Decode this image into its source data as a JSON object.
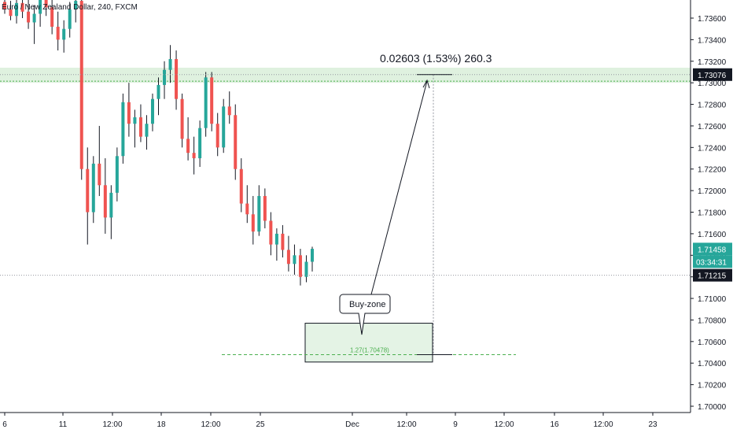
{
  "chart_data": {
    "type": "candlestick",
    "title": "Euro / New Zealand Dollar, 240, FXCM",
    "y_ticks": [
      "1.73600",
      "1.73400",
      "1.73200",
      "1.73000",
      "1.72800",
      "1.72600",
      "1.72400",
      "1.72200",
      "1.72000",
      "1.71800",
      "1.71600",
      "1.71400",
      "1.71200",
      "1.71000",
      "1.70800",
      "1.70600",
      "1.70400",
      "1.70200",
      "1.70000"
    ],
    "x_ticks": [
      "6",
      "11",
      "12:00",
      "18",
      "12:00",
      "25",
      "Dec",
      "12:00",
      "9",
      "12:00",
      "16",
      "12:00",
      "23"
    ],
    "ylim": [
      1.6994,
      1.7381
    ],
    "series": [
      {
        "name": "EURNZD",
        "ohlc_sample": [
          [
            1.7375,
            1.7381,
            1.7364,
            1.7368
          ],
          [
            1.7368,
            1.7376,
            1.7358,
            1.7362
          ],
          [
            1.7362,
            1.738,
            1.7355,
            1.7374
          ],
          [
            1.7374,
            1.7381,
            1.736,
            1.7366
          ],
          [
            1.7366,
            1.7377,
            1.735,
            1.7356
          ],
          [
            1.7356,
            1.7372,
            1.7336,
            1.7364
          ],
          [
            1.7364,
            1.7381,
            1.7352,
            1.7378
          ],
          [
            1.7378,
            1.7381,
            1.7362,
            1.737
          ],
          [
            1.737,
            1.7381,
            1.7345,
            1.7352
          ],
          [
            1.7352,
            1.7366,
            1.733,
            1.734
          ],
          [
            1.734,
            1.7358,
            1.7328,
            1.735
          ],
          [
            1.735,
            1.7375,
            1.7342,
            1.7368
          ],
          [
            1.7368,
            1.7381,
            1.7356,
            1.7376
          ],
          [
            1.7376,
            1.7381,
            1.721,
            1.722
          ],
          [
            1.722,
            1.724,
            1.715,
            1.718
          ],
          [
            1.718,
            1.7232,
            1.717,
            1.7225
          ],
          [
            1.7225,
            1.726,
            1.7195,
            1.7205
          ],
          [
            1.7205,
            1.723,
            1.716,
            1.7175
          ],
          [
            1.7175,
            1.7205,
            1.7155,
            1.7198
          ],
          [
            1.7198,
            1.724,
            1.719,
            1.7232
          ],
          [
            1.7232,
            1.729,
            1.7225,
            1.7282
          ],
          [
            1.7282,
            1.73,
            1.725,
            1.7262
          ],
          [
            1.7262,
            1.7275,
            1.724,
            1.7268
          ],
          [
            1.7268,
            1.728,
            1.7245,
            1.725
          ],
          [
            1.725,
            1.727,
            1.7238,
            1.7262
          ],
          [
            1.7262,
            1.729,
            1.7255,
            1.7285
          ],
          [
            1.7285,
            1.7305,
            1.727,
            1.7298
          ],
          [
            1.7298,
            1.732,
            1.7285,
            1.7312
          ],
          [
            1.7312,
            1.7335,
            1.73,
            1.7322
          ],
          [
            1.7322,
            1.733,
            1.7275,
            1.7285
          ],
          [
            1.7285,
            1.729,
            1.724,
            1.7248
          ],
          [
            1.7248,
            1.7268,
            1.7228,
            1.7235
          ],
          [
            1.7235,
            1.725,
            1.7215,
            1.723
          ],
          [
            1.723,
            1.7265,
            1.7222,
            1.7258
          ],
          [
            1.7258,
            1.731,
            1.725,
            1.7305
          ],
          [
            1.7305,
            1.731,
            1.7255,
            1.7262
          ],
          [
            1.7262,
            1.7272,
            1.7232,
            1.724
          ],
          [
            1.724,
            1.7285,
            1.7235,
            1.7278
          ],
          [
            1.7278,
            1.7292,
            1.7262,
            1.727
          ],
          [
            1.727,
            1.728,
            1.721,
            1.722
          ],
          [
            1.722,
            1.723,
            1.718,
            1.7188
          ],
          [
            1.7188,
            1.7205,
            1.717,
            1.7178
          ],
          [
            1.7178,
            1.7195,
            1.715,
            1.7162
          ],
          [
            1.7162,
            1.7205,
            1.7158,
            1.7195
          ],
          [
            1.7195,
            1.7202,
            1.7165,
            1.7172
          ],
          [
            1.7172,
            1.718,
            1.714,
            1.715
          ],
          [
            1.715,
            1.7165,
            1.7135,
            1.716
          ],
          [
            1.716,
            1.7168,
            1.7138,
            1.7145
          ],
          [
            1.7145,
            1.7158,
            1.7125,
            1.7132
          ],
          [
            1.7132,
            1.715,
            1.7122,
            1.714
          ],
          [
            1.714,
            1.7146,
            1.7112,
            1.712
          ],
          [
            1.712,
            1.714,
            1.7115,
            1.7134
          ],
          [
            1.7134,
            1.7148,
            1.7125,
            1.7146
          ]
        ]
      }
    ],
    "grid": false,
    "price_lines": [
      {
        "label": "1.73076",
        "value": 1.73076,
        "color": "#131722"
      },
      {
        "label": "1.71458",
        "value": 1.71458,
        "color": "#26a69a"
      },
      {
        "label": "1.71215",
        "value": 1.71215,
        "color": "#131722"
      }
    ],
    "countdown": "03:34:31",
    "annotations": {
      "measure": "0.02603 (1.53%) 260.3",
      "callout": "Buy-zone",
      "fib_label": "1.27(1.70478)",
      "resistance_zone": [
        1.73,
        1.7314
      ],
      "buy_zone": [
        1.7041,
        1.7077
      ]
    },
    "colors": {
      "up": "#26a69a",
      "down": "#ef5350",
      "zone": "#4caf50"
    }
  }
}
